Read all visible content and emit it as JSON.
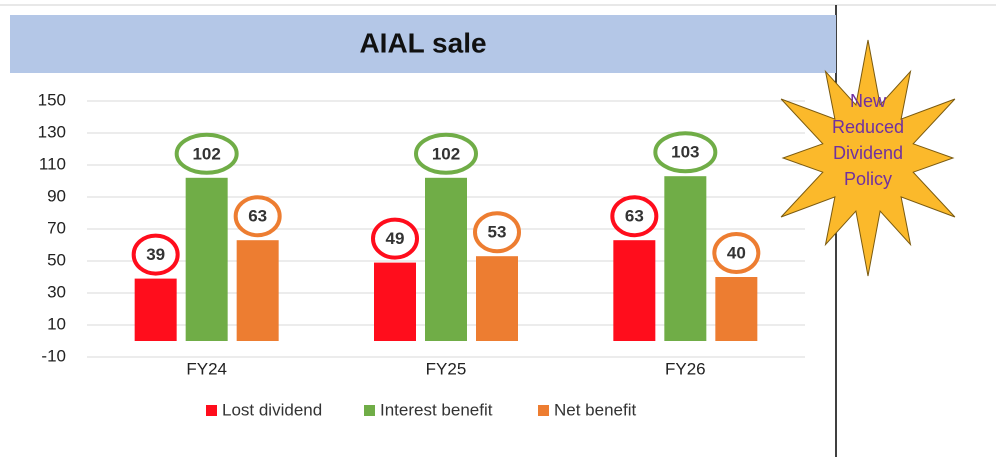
{
  "chart_data": {
    "type": "bar",
    "title": "AIAL sale",
    "categories": [
      "FY24",
      "FY25",
      "FY26"
    ],
    "series": [
      {
        "name": "Lost dividend",
        "color": "#ff0d1c",
        "values": [
          39,
          49,
          63
        ]
      },
      {
        "name": "Interest benefit",
        "color": "#70ad47",
        "values": [
          102,
          102,
          103
        ]
      },
      {
        "name": "Net benefit",
        "color": "#ed7d31",
        "values": [
          63,
          53,
          40
        ]
      }
    ],
    "ylim": [
      -10,
      150
    ],
    "yticks": [
      -10,
      10,
      30,
      50,
      70,
      90,
      110,
      130,
      150
    ],
    "grid": true,
    "legend": "bottom",
    "annotation_lines": [
      "New",
      "Reduced",
      "Dividend",
      "Policy"
    ]
  }
}
